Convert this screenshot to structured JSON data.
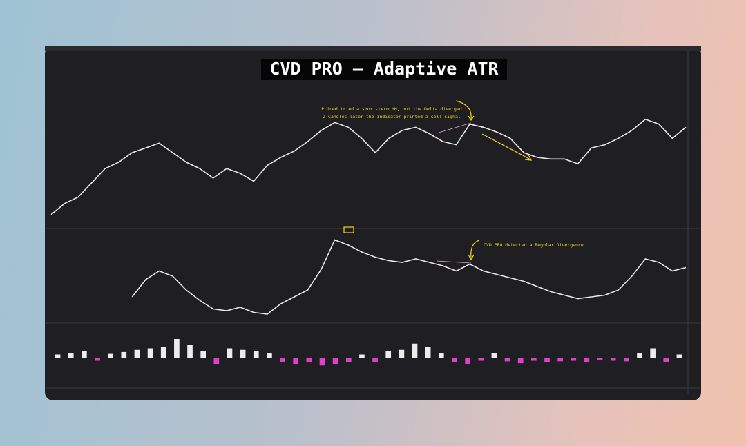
{
  "chart_data": [
    {
      "type": "line",
      "title": "CVD PRO — Adaptive ATR",
      "annotations": [
        "Priced tried a short-term HH, but the Delta diverged",
        "2 Candles later the indicator printed a sell signal"
      ],
      "color": "#e8e8e8",
      "ylim": [
        0,
        100
      ],
      "values": [
        4,
        11,
        15,
        24,
        33,
        37,
        43,
        46,
        49,
        43,
        37,
        33,
        27,
        33,
        30,
        25,
        35,
        40,
        44,
        50,
        57,
        62,
        59,
        52,
        43,
        52,
        57,
        59,
        55,
        50,
        48,
        61,
        59,
        56,
        52,
        43,
        40,
        39,
        39,
        36,
        46,
        48,
        52,
        57,
        64,
        61,
        52,
        59
      ]
    },
    {
      "type": "line",
      "annotations": [
        "CVD PRO detected a Regular Divergence"
      ],
      "color": "#e8e8e8",
      "ylim": [
        0,
        100
      ],
      "values": [
        null,
        null,
        null,
        null,
        null,
        null,
        28,
        48,
        58,
        52,
        36,
        24,
        14,
        12,
        16,
        10,
        8,
        20,
        28,
        36,
        60,
        94,
        88,
        80,
        74,
        70,
        68,
        72,
        68,
        64,
        58,
        66,
        58,
        54,
        50,
        46,
        40,
        34,
        30,
        26,
        28,
        30,
        36,
        52,
        72,
        68,
        58,
        62
      ]
    },
    {
      "type": "bar",
      "color": "#ececec",
      "negative_color": "#e040c8",
      "ylim": [
        -100,
        100
      ],
      "values": [
        10,
        15,
        20,
        -10,
        12,
        18,
        25,
        30,
        35,
        60,
        40,
        20,
        -20,
        30,
        25,
        20,
        15,
        -15,
        -20,
        -15,
        -25,
        -20,
        -15,
        10,
        -15,
        20,
        25,
        45,
        35,
        15,
        -15,
        -20,
        -10,
        15,
        -12,
        -18,
        -10,
        -15,
        -12,
        -10,
        -15,
        -8,
        -10,
        -12,
        15,
        30,
        -15,
        10
      ]
    }
  ]
}
